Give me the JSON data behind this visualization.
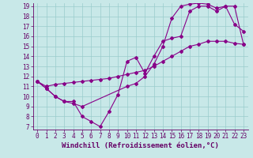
{
  "line1_x": [
    0,
    1,
    2,
    3,
    4,
    5,
    6,
    7,
    8,
    9,
    10,
    11,
    12,
    13,
    14,
    15,
    16,
    17,
    18,
    19,
    20,
    21,
    22,
    23
  ],
  "line1_y": [
    11.5,
    11.0,
    11.2,
    11.3,
    11.4,
    11.5,
    11.6,
    11.7,
    11.8,
    12.0,
    12.2,
    12.4,
    12.6,
    13.0,
    13.5,
    14.0,
    14.5,
    15.0,
    15.2,
    15.5,
    15.5,
    15.5,
    15.3,
    15.2
  ],
  "line2_x": [
    0,
    1,
    2,
    3,
    4,
    5,
    6,
    7,
    8,
    9,
    10,
    11,
    12,
    13,
    14,
    15,
    16,
    17,
    18,
    19,
    20,
    21,
    22,
    23
  ],
  "line2_y": [
    11.5,
    10.8,
    10.0,
    9.5,
    9.5,
    8.0,
    7.5,
    7.0,
    8.5,
    10.2,
    13.5,
    13.9,
    12.3,
    14.0,
    15.5,
    15.8,
    16.0,
    18.5,
    19.0,
    19.0,
    18.5,
    19.0,
    17.2,
    16.5
  ],
  "line3_x": [
    0,
    1,
    2,
    3,
    4,
    5,
    10,
    11,
    12,
    13,
    14,
    15,
    16,
    17,
    18,
    19,
    20,
    21,
    22,
    23
  ],
  "line3_y": [
    11.5,
    10.8,
    10.0,
    9.5,
    9.3,
    9.0,
    11.0,
    11.3,
    12.0,
    13.2,
    15.0,
    17.8,
    19.0,
    19.2,
    19.3,
    19.2,
    18.8,
    19.0,
    19.0,
    15.2
  ],
  "color": "#880088",
  "bg_color": "#c8e8e8",
  "grid_color": "#99cccc",
  "axis_color": "#660066",
  "xlabel": "Windchill (Refroidissement éolien,°C)",
  "xlim_min": -0.5,
  "xlim_max": 23.5,
  "ylim_min": 6.7,
  "ylim_max": 19.3,
  "yticks": [
    7,
    8,
    9,
    10,
    11,
    12,
    13,
    14,
    15,
    16,
    17,
    18,
    19
  ],
  "xticks": [
    0,
    1,
    2,
    3,
    4,
    5,
    6,
    7,
    8,
    9,
    10,
    11,
    12,
    13,
    14,
    15,
    16,
    17,
    18,
    19,
    20,
    21,
    22,
    23
  ],
  "tick_fontsize": 5.5,
  "label_fontsize": 6.5,
  "lw": 0.8,
  "ms": 2.0
}
